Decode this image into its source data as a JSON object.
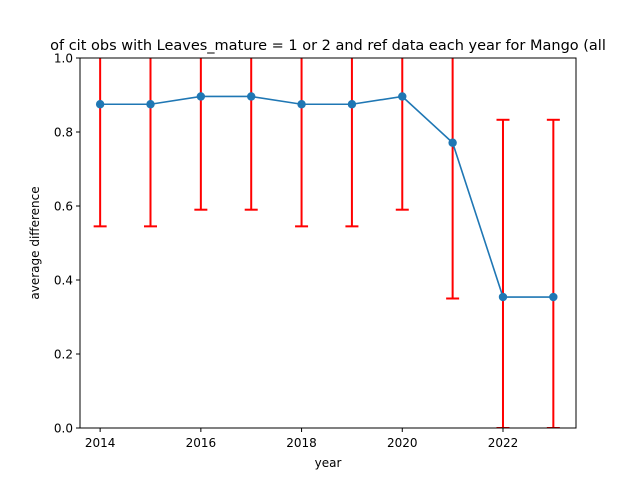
{
  "chart_data": {
    "type": "line",
    "title": "of cit obs with Leaves_mature = 1 or 2 and ref data each year for Mango (all",
    "xlabel": "year",
    "ylabel": "average difference",
    "xlim": [
      2013.6,
      2023.45
    ],
    "ylim": [
      0,
      1
    ],
    "x_ticks": [
      2014,
      2016,
      2018,
      2020,
      2022
    ],
    "y_ticks": [
      0.0,
      0.2,
      0.4,
      0.6,
      0.8,
      1.0
    ],
    "x_tick_labels": [
      "2014",
      "2016",
      "2018",
      "2020",
      "2022"
    ],
    "y_tick_labels": [
      "0.0",
      "0.2",
      "0.4",
      "0.6",
      "0.8",
      "1.0"
    ],
    "grid": false,
    "x": [
      2014,
      2015,
      2016,
      2017,
      2018,
      2019,
      2020,
      2021,
      2022,
      2023
    ],
    "series": [
      {
        "values": [
          0.875,
          0.875,
          0.896,
          0.896,
          0.875,
          0.875,
          0.896,
          0.771,
          0.354,
          0.354
        ],
        "error_low": [
          0.545,
          0.545,
          0.59,
          0.59,
          0.545,
          0.545,
          0.59,
          0.35,
          0.0,
          0.0
        ],
        "error_high": [
          1.205,
          1.205,
          1.202,
          1.202,
          1.205,
          1.205,
          1.202,
          1.192,
          0.833,
          0.833
        ],
        "line_color": "#1f77b4",
        "error_color": "#ff0000"
      }
    ]
  }
}
